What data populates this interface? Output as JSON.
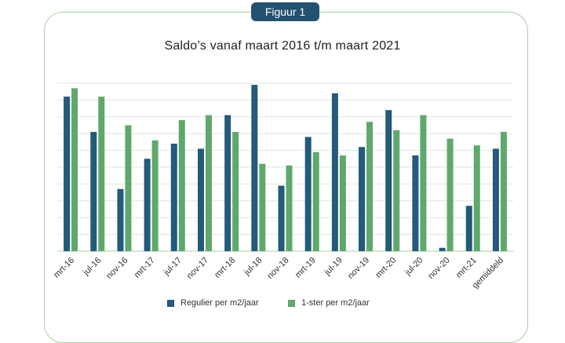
{
  "badge": "Figuur 1",
  "chart_data": {
    "type": "bar",
    "title": "Saldo’s vanaf maart 2016 t/m maart 2021",
    "categories": [
      "mrt-16",
      "jul-16",
      "nov-16",
      "mrt-17",
      "jul-17",
      "nov-17",
      "mrt-18",
      "jul-18",
      "nov-18",
      "mrt-19",
      "jul-19",
      "nov-19",
      "mrt-20",
      "jul-20",
      "nov-20",
      "mrt-21",
      "gemiddeld"
    ],
    "series": [
      {
        "name": "Regulier per m2/jaar",
        "color": "#245a7a",
        "values": [
          9.2,
          7.1,
          3.7,
          5.5,
          6.4,
          6.1,
          8.1,
          9.9,
          3.9,
          6.8,
          9.4,
          6.2,
          8.4,
          5.7,
          0.2,
          2.7,
          6.1
        ]
      },
      {
        "name": "1-ster per m2/jaar",
        "color": "#5fa86b",
        "values": [
          9.7,
          9.2,
          7.5,
          6.6,
          7.8,
          8.1,
          7.1,
          5.2,
          5.1,
          5.9,
          5.7,
          7.7,
          7.2,
          8.1,
          6.7,
          6.3,
          7.1
        ]
      }
    ],
    "ylim": [
      0,
      10
    ],
    "grid": true,
    "legend_position": "bottom"
  }
}
